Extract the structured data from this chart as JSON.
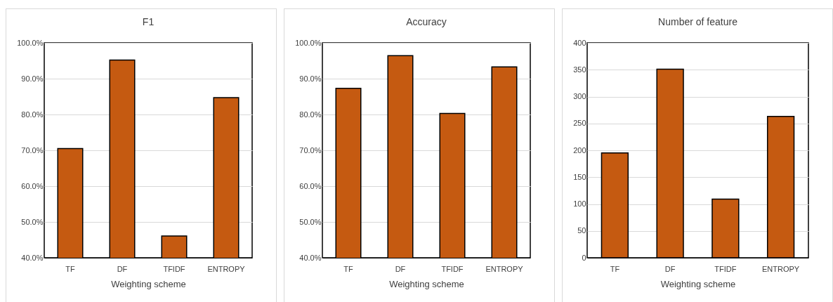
{
  "chart_data": [
    {
      "type": "bar",
      "title": "F1",
      "xlabel": "Weighting scheme",
      "categories": [
        "TF",
        "DF",
        "TFIDF",
        "ENTROPY"
      ],
      "values": [
        70.5,
        95.2,
        46.1,
        84.7
      ],
      "color": "#c55a11",
      "ylim": [
        40,
        100
      ],
      "yticks": [
        {
          "value": 40,
          "label": "40.0%"
        },
        {
          "value": 50,
          "label": "50.0%"
        },
        {
          "value": 60,
          "label": "60.0%"
        },
        {
          "value": 70,
          "label": "70.0%"
        },
        {
          "value": 80,
          "label": "80.0%"
        },
        {
          "value": 90,
          "label": "90.0%"
        },
        {
          "value": 100,
          "label": "100.0%"
        }
      ],
      "grid": "y"
    },
    {
      "type": "bar",
      "title": "Accuracy",
      "xlabel": "Weighting scheme",
      "categories": [
        "TF",
        "DF",
        "TFIDF",
        "ENTROPY"
      ],
      "values": [
        87.3,
        96.4,
        80.3,
        93.3
      ],
      "color": "#c55a11",
      "ylim": [
        40,
        100
      ],
      "yticks": [
        {
          "value": 40,
          "label": "40.0%"
        },
        {
          "value": 50,
          "label": "50.0%"
        },
        {
          "value": 60,
          "label": "60.0%"
        },
        {
          "value": 70,
          "label": "70.0%"
        },
        {
          "value": 80,
          "label": "80.0%"
        },
        {
          "value": 90,
          "label": "90.0%"
        },
        {
          "value": 100,
          "label": "100.0%"
        }
      ],
      "grid": "y"
    },
    {
      "type": "bar",
      "title": "Number of feature",
      "xlabel": "Weighting scheme",
      "categories": [
        "TF",
        "DF",
        "TFIDF",
        "ENTROPY"
      ],
      "values": [
        195,
        351,
        109,
        263
      ],
      "color": "#c55a11",
      "ylim": [
        0,
        400
      ],
      "yticks": [
        0,
        50,
        100,
        150,
        200,
        250,
        300,
        350,
        400
      ],
      "grid": "y"
    }
  ]
}
